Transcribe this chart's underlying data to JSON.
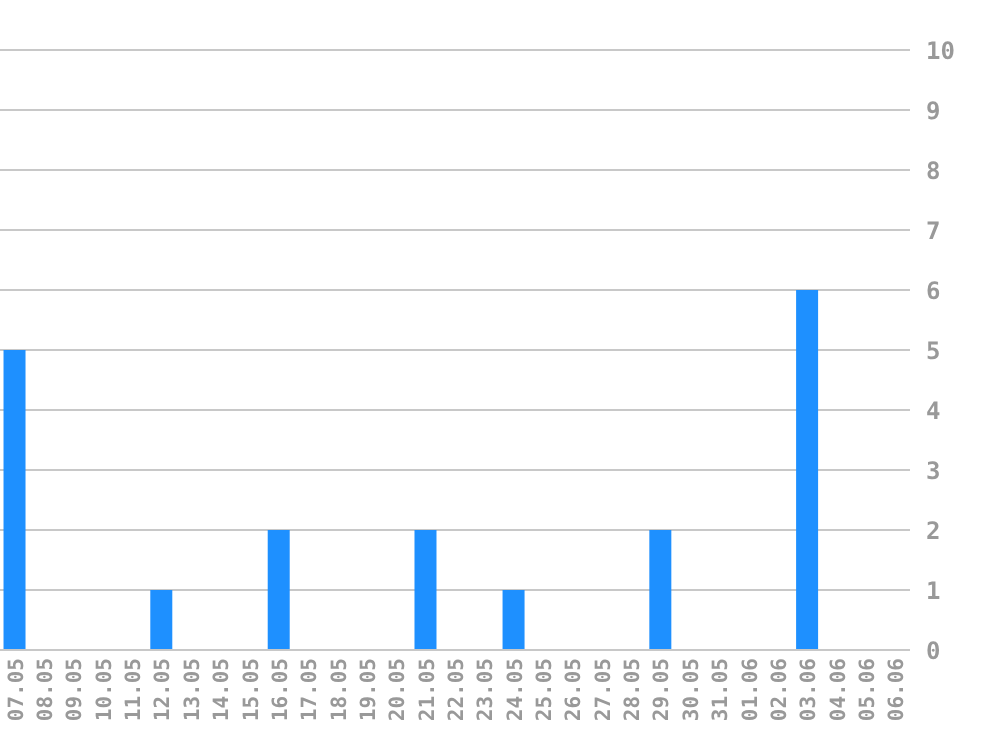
{
  "chart_data": {
    "type": "bar",
    "categories": [
      "07.05",
      "08.05",
      "09.05",
      "10.05",
      "11.05",
      "12.05",
      "13.05",
      "14.05",
      "15.05",
      "16.05",
      "17.05",
      "18.05",
      "19.05",
      "20.05",
      "21.05",
      "22.05",
      "23.05",
      "24.05",
      "25.05",
      "26.05",
      "27.05",
      "28.05",
      "29.05",
      "30.05",
      "31.05",
      "01.06",
      "02.06",
      "03.06",
      "04.06",
      "05.06",
      "06.06"
    ],
    "values": [
      5,
      0,
      0,
      0,
      0,
      1,
      0,
      0,
      0,
      2,
      0,
      0,
      0,
      0,
      2,
      0,
      0,
      1,
      0,
      0,
      0,
      0,
      2,
      0,
      0,
      0,
      0,
      6,
      0,
      0,
      0
    ],
    "color": "#1e90ff",
    "ylim": [
      0,
      10
    ],
    "yticks": [
      0,
      1,
      2,
      3,
      4,
      5,
      6,
      7,
      8,
      9,
      10
    ],
    "grid": "y"
  }
}
